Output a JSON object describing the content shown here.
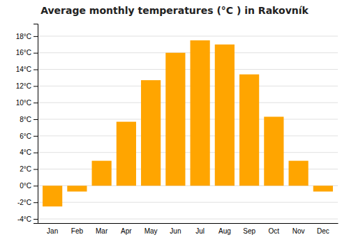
{
  "chart_data": {
    "type": "bar",
    "title": "Average monthly temperatures (°C ) in Rakovník",
    "categories": [
      "Jan",
      "Feb",
      "Mar",
      "Apr",
      "May",
      "Jun",
      "Jul",
      "Aug",
      "Sep",
      "Oct",
      "Nov",
      "Dec"
    ],
    "values": [
      -2.5,
      -0.7,
      3.0,
      7.7,
      12.7,
      16.0,
      17.5,
      17.0,
      13.4,
      8.3,
      3.0,
      -0.7
    ],
    "color": "#FFA500",
    "ylim": [
      -4.5,
      19.5
    ],
    "yticks": [
      {
        "value": -4,
        "label": "-4°C"
      },
      {
        "value": -2,
        "label": "-2°C"
      },
      {
        "value": 0,
        "label": "0°C"
      },
      {
        "value": 2,
        "label": "2°C"
      },
      {
        "value": 4,
        "label": "4°C"
      },
      {
        "value": 6,
        "label": "6°C"
      },
      {
        "value": 8,
        "label": "8°C"
      },
      {
        "value": 10,
        "label": "10°C"
      },
      {
        "value": 12,
        "label": "12°C"
      },
      {
        "value": 14,
        "label": "14°C"
      },
      {
        "value": 16,
        "label": "16°C"
      },
      {
        "value": 18,
        "label": "18°C"
      }
    ],
    "grid": true
  }
}
